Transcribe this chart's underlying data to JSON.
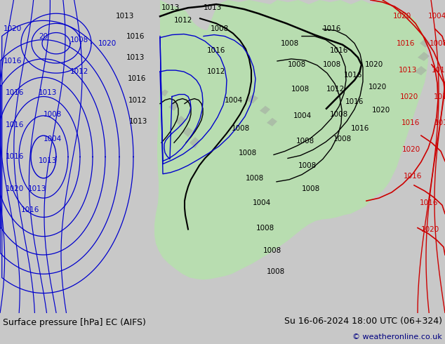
{
  "title_left": "Surface pressure [hPa] EC (AIFS)",
  "title_right": "Su 16-06-2024 18:00 UTC (06+324)",
  "copyright": "© weatheronline.co.uk",
  "bg_color": "#c8c8c8",
  "map_bg_color": "#ffffff",
  "land_color": "#b8ddb0",
  "sea_color": "#ffffff",
  "bottom_bar_color": "#c8c8c8",
  "bottom_text_color": "#000000",
  "copyright_color": "#000080",
  "figsize": [
    6.34,
    4.9
  ],
  "dpi": 100,
  "blue": "#0000cc",
  "black": "#000000",
  "red": "#cc0000"
}
